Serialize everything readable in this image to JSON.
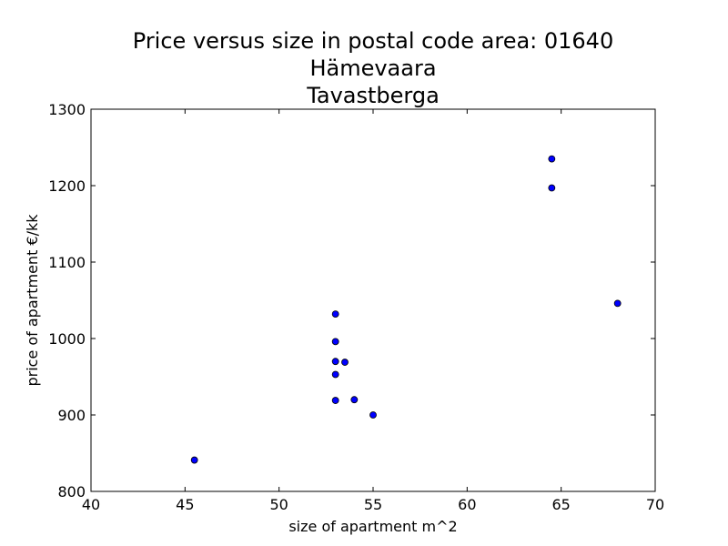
{
  "chart_data": {
    "type": "scatter",
    "title_lines": [
      "Price versus size in postal code area: 01640",
      "Hämevaara",
      "Tavastberga"
    ],
    "xlabel": "size of apartment m^2",
    "ylabel": "price of apartment €/kk",
    "xlim": [
      40,
      70
    ],
    "ylim": [
      800,
      1300
    ],
    "x_ticks": [
      "40",
      "45",
      "50",
      "55",
      "60",
      "65",
      "70"
    ],
    "y_ticks": [
      "800",
      "900",
      "1000",
      "1100",
      "1200",
      "1300"
    ],
    "grid": false,
    "marker_color": "#0000ff",
    "marker_edge_color": "#000000",
    "points": [
      {
        "x": 45.5,
        "y": 841
      },
      {
        "x": 53.0,
        "y": 1032
      },
      {
        "x": 53.0,
        "y": 996
      },
      {
        "x": 53.0,
        "y": 970
      },
      {
        "x": 53.0,
        "y": 953
      },
      {
        "x": 53.0,
        "y": 919
      },
      {
        "x": 53.5,
        "y": 969
      },
      {
        "x": 54.0,
        "y": 920
      },
      {
        "x": 55.0,
        "y": 900
      },
      {
        "x": 64.5,
        "y": 1235
      },
      {
        "x": 64.5,
        "y": 1197
      },
      {
        "x": 68.0,
        "y": 1046
      }
    ]
  }
}
